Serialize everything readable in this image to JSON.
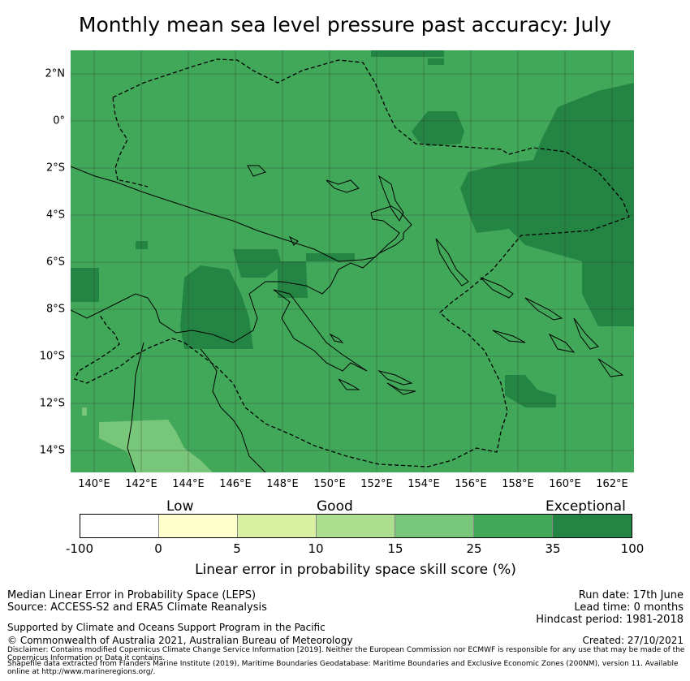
{
  "title": "Monthly mean sea level pressure past accuracy: July",
  "map": {
    "fill_color": "#41a85a",
    "lat_labels": [
      "2°N",
      "0°",
      "2°S",
      "4°S",
      "6°S",
      "8°S",
      "10°S",
      "12°S",
      "14°S"
    ],
    "lon_labels": [
      "140°E",
      "142°E",
      "144°E",
      "146°E",
      "148°E",
      "150°E",
      "152°E",
      "154°E",
      "156°E",
      "158°E",
      "160°E",
      "162°E"
    ]
  },
  "legend": {
    "categories": [
      "Low",
      "Good",
      "Exceptional"
    ],
    "ticks": [
      "-100",
      "0",
      "5",
      "10",
      "15",
      "25",
      "35",
      "100"
    ],
    "colors": [
      "#ffffff",
      "#ffffcc",
      "#d9f0a3",
      "#addd8e",
      "#78c679",
      "#41a85a",
      "#238443"
    ],
    "title": "Linear error in probability space skill score (%)"
  },
  "footer": {
    "left_line1": "Median Linear Error in Probability Space (LEPS)",
    "left_line2": "Source: ACCESS-S2 and ERA5 Climate Reanalysis",
    "support": "Supported by Climate and Oceans Support Program in the Pacific",
    "copyright": "© Commonwealth of Australia 2021, Australian Bureau of Meteorology",
    "run_date": "Run date: 17th June",
    "lead_time": "Lead time: 0 months",
    "hindcast": "Hindcast period: 1981-2018",
    "created": "Created: 27/10/2021",
    "disclaimer": "Disclaimer: Contains modified Copernicus Climate Change Service Information [2019]. Neither the European Commission nor ECMWF is responsible for any use that may be made of the Copernicus Information or Data it contains.",
    "shapefile": "Shapefile data extracted from Flanders Marine Institute (2019), Maritime Boundaries Geodatabase: Maritime Boundaries and Exclusive Economic Zones (200NM), version 11. Available online at http://www.marineregions.org/."
  }
}
